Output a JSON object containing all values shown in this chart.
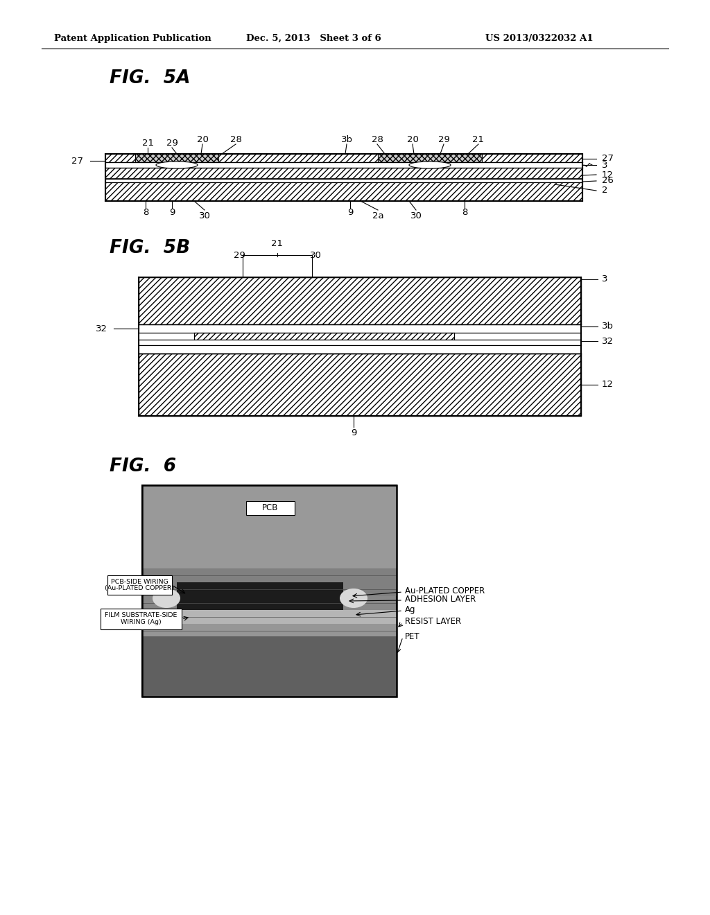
{
  "header_left": "Patent Application Publication",
  "header_mid": "Dec. 5, 2013   Sheet 3 of 6",
  "header_right": "US 2013/0322032 A1",
  "fig5a_title": "FIG.  5A",
  "fig5b_title": "FIG.  5B",
  "fig6_title": "FIG.  6",
  "background_color": "#ffffff"
}
